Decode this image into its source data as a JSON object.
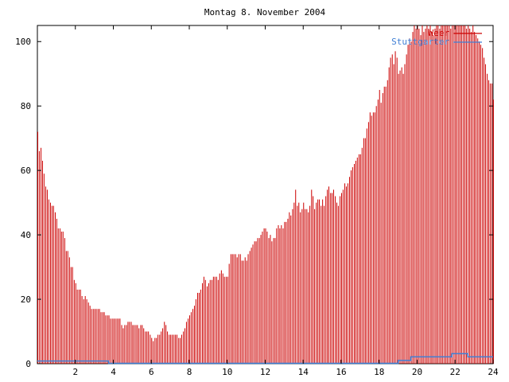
{
  "chart_data": {
    "type": "bar",
    "title": "Montag 8. November 2004",
    "xlabel": "",
    "ylabel": "",
    "xlim": [
      0,
      24
    ],
    "ylim": [
      0,
      105
    ],
    "x_ticks": [
      2,
      4,
      6,
      8,
      10,
      12,
      14,
      16,
      18,
      20,
      22,
      24
    ],
    "x_tick_labels": [
      "2",
      "4",
      "6",
      "8",
      "10",
      "12",
      "14",
      "16",
      "18",
      "20",
      "22",
      "24"
    ],
    "y_ticks": [
      0,
      20,
      40,
      60,
      80,
      100
    ],
    "y_tick_labels": [
      "0",
      "20",
      "40",
      "60",
      "80",
      "100"
    ],
    "grid": false,
    "legend_position": "top-right",
    "series": [
      {
        "name": "Weer",
        "color": "#cc0000",
        "style": "impulses",
        "points": [
          [
            0.0,
            72
          ],
          [
            0.08,
            66
          ],
          [
            0.17,
            67
          ],
          [
            0.25,
            63
          ],
          [
            0.33,
            59
          ],
          [
            0.42,
            55
          ],
          [
            0.5,
            54
          ],
          [
            0.58,
            51
          ],
          [
            0.67,
            50
          ],
          [
            0.75,
            49
          ],
          [
            0.83,
            49
          ],
          [
            0.92,
            47
          ],
          [
            1.0,
            45
          ],
          [
            1.08,
            42
          ],
          [
            1.17,
            42
          ],
          [
            1.25,
            41
          ],
          [
            1.33,
            41
          ],
          [
            1.42,
            39
          ],
          [
            1.5,
            35
          ],
          [
            1.58,
            35
          ],
          [
            1.67,
            33
          ],
          [
            1.75,
            30
          ],
          [
            1.83,
            30
          ],
          [
            1.92,
            26
          ],
          [
            2.0,
            25
          ],
          [
            2.08,
            23
          ],
          [
            2.17,
            23
          ],
          [
            2.25,
            23
          ],
          [
            2.33,
            21
          ],
          [
            2.42,
            20
          ],
          [
            2.5,
            21
          ],
          [
            2.58,
            20
          ],
          [
            2.67,
            19
          ],
          [
            2.75,
            18
          ],
          [
            2.83,
            17
          ],
          [
            2.92,
            17
          ],
          [
            3.0,
            17
          ],
          [
            3.08,
            17
          ],
          [
            3.17,
            17
          ],
          [
            3.25,
            17
          ],
          [
            3.33,
            16
          ],
          [
            3.42,
            16
          ],
          [
            3.5,
            16
          ],
          [
            3.58,
            15
          ],
          [
            3.67,
            15
          ],
          [
            3.75,
            15
          ],
          [
            3.83,
            14
          ],
          [
            3.92,
            14
          ],
          [
            4.0,
            14
          ],
          [
            4.08,
            14
          ],
          [
            4.17,
            14
          ],
          [
            4.25,
            14
          ],
          [
            4.33,
            14
          ],
          [
            4.42,
            12
          ],
          [
            4.5,
            11
          ],
          [
            4.58,
            12
          ],
          [
            4.67,
            12
          ],
          [
            4.75,
            13
          ],
          [
            4.83,
            13
          ],
          [
            4.92,
            13
          ],
          [
            5.0,
            12
          ],
          [
            5.08,
            12
          ],
          [
            5.17,
            12
          ],
          [
            5.25,
            12
          ],
          [
            5.33,
            11
          ],
          [
            5.42,
            12
          ],
          [
            5.5,
            12
          ],
          [
            5.58,
            11
          ],
          [
            5.67,
            10
          ],
          [
            5.75,
            10
          ],
          [
            5.83,
            10
          ],
          [
            5.92,
            9
          ],
          [
            6.0,
            8
          ],
          [
            6.08,
            7
          ],
          [
            6.17,
            8
          ],
          [
            6.25,
            8
          ],
          [
            6.33,
            9
          ],
          [
            6.42,
            9
          ],
          [
            6.5,
            10
          ],
          [
            6.58,
            11
          ],
          [
            6.67,
            13
          ],
          [
            6.75,
            12
          ],
          [
            6.83,
            10
          ],
          [
            6.92,
            9
          ],
          [
            7.0,
            9
          ],
          [
            7.08,
            9
          ],
          [
            7.17,
            9
          ],
          [
            7.25,
            9
          ],
          [
            7.33,
            9
          ],
          [
            7.42,
            8
          ],
          [
            7.5,
            8
          ],
          [
            7.58,
            9
          ],
          [
            7.67,
            10
          ],
          [
            7.75,
            11
          ],
          [
            7.83,
            13
          ],
          [
            7.92,
            14
          ],
          [
            8.0,
            15
          ],
          [
            8.08,
            16
          ],
          [
            8.17,
            17
          ],
          [
            8.25,
            18
          ],
          [
            8.33,
            20
          ],
          [
            8.42,
            22
          ],
          [
            8.5,
            22
          ],
          [
            8.58,
            23
          ],
          [
            8.67,
            25
          ],
          [
            8.75,
            27
          ],
          [
            8.83,
            26
          ],
          [
            8.92,
            24
          ],
          [
            9.0,
            25
          ],
          [
            9.08,
            26
          ],
          [
            9.17,
            26
          ],
          [
            9.25,
            27
          ],
          [
            9.33,
            27
          ],
          [
            9.42,
            27
          ],
          [
            9.5,
            26
          ],
          [
            9.58,
            28
          ],
          [
            9.67,
            29
          ],
          [
            9.75,
            28
          ],
          [
            9.83,
            27
          ],
          [
            9.92,
            27
          ],
          [
            10.0,
            27
          ],
          [
            10.08,
            31
          ],
          [
            10.17,
            34
          ],
          [
            10.25,
            34
          ],
          [
            10.33,
            34
          ],
          [
            10.42,
            34
          ],
          [
            10.5,
            33
          ],
          [
            10.58,
            34
          ],
          [
            10.67,
            34
          ],
          [
            10.75,
            32
          ],
          [
            10.83,
            32
          ],
          [
            10.92,
            33
          ],
          [
            11.0,
            32
          ],
          [
            11.08,
            34
          ],
          [
            11.17,
            35
          ],
          [
            11.25,
            36
          ],
          [
            11.33,
            37
          ],
          [
            11.42,
            38
          ],
          [
            11.5,
            38
          ],
          [
            11.58,
            39
          ],
          [
            11.67,
            39
          ],
          [
            11.75,
            40
          ],
          [
            11.83,
            41
          ],
          [
            11.92,
            42
          ],
          [
            12.0,
            42
          ],
          [
            12.08,
            41
          ],
          [
            12.17,
            39
          ],
          [
            12.25,
            40
          ],
          [
            12.33,
            38
          ],
          [
            12.42,
            39
          ],
          [
            12.5,
            39
          ],
          [
            12.58,
            42
          ],
          [
            12.67,
            43
          ],
          [
            12.75,
            42
          ],
          [
            12.83,
            43
          ],
          [
            12.92,
            42
          ],
          [
            13.0,
            44
          ],
          [
            13.08,
            44
          ],
          [
            13.17,
            45
          ],
          [
            13.25,
            47
          ],
          [
            13.33,
            46
          ],
          [
            13.42,
            48
          ],
          [
            13.5,
            50
          ],
          [
            13.58,
            54
          ],
          [
            13.67,
            49
          ],
          [
            13.75,
            50
          ],
          [
            13.83,
            47
          ],
          [
            13.92,
            48
          ],
          [
            14.0,
            50
          ],
          [
            14.08,
            48
          ],
          [
            14.17,
            48
          ],
          [
            14.25,
            47
          ],
          [
            14.33,
            49
          ],
          [
            14.42,
            54
          ],
          [
            14.5,
            52
          ],
          [
            14.58,
            48
          ],
          [
            14.67,
            50
          ],
          [
            14.75,
            51
          ],
          [
            14.83,
            51
          ],
          [
            14.92,
            49
          ],
          [
            15.0,
            51
          ],
          [
            15.08,
            49
          ],
          [
            15.17,
            52
          ],
          [
            15.25,
            54
          ],
          [
            15.33,
            55
          ],
          [
            15.42,
            53
          ],
          [
            15.5,
            53
          ],
          [
            15.58,
            54
          ],
          [
            15.67,
            52
          ],
          [
            15.75,
            50
          ],
          [
            15.83,
            49
          ],
          [
            15.92,
            52
          ],
          [
            16.0,
            53
          ],
          [
            16.08,
            54
          ],
          [
            16.17,
            56
          ],
          [
            16.25,
            55
          ],
          [
            16.33,
            56
          ],
          [
            16.42,
            58
          ],
          [
            16.5,
            60
          ],
          [
            16.58,
            61
          ],
          [
            16.67,
            62
          ],
          [
            16.75,
            63
          ],
          [
            16.83,
            64
          ],
          [
            16.92,
            65
          ],
          [
            17.0,
            65
          ],
          [
            17.08,
            67
          ],
          [
            17.17,
            70
          ],
          [
            17.25,
            70
          ],
          [
            17.33,
            73
          ],
          [
            17.42,
            75
          ],
          [
            17.5,
            78
          ],
          [
            17.58,
            77
          ],
          [
            17.67,
            78
          ],
          [
            17.75,
            78
          ],
          [
            17.83,
            80
          ],
          [
            17.92,
            82
          ],
          [
            18.0,
            85
          ],
          [
            18.08,
            81
          ],
          [
            18.17,
            84
          ],
          [
            18.25,
            86
          ],
          [
            18.33,
            86
          ],
          [
            18.42,
            88
          ],
          [
            18.5,
            92
          ],
          [
            18.58,
            95
          ],
          [
            18.67,
            96
          ],
          [
            18.75,
            93
          ],
          [
            18.83,
            97
          ],
          [
            18.92,
            95
          ],
          [
            19.0,
            90
          ],
          [
            19.08,
            91
          ],
          [
            19.17,
            92
          ],
          [
            19.25,
            90
          ],
          [
            19.33,
            93
          ],
          [
            19.42,
            96
          ],
          [
            19.5,
            99
          ],
          [
            19.58,
            101
          ],
          [
            19.67,
            100
          ],
          [
            19.75,
            103
          ],
          [
            19.83,
            105
          ],
          [
            19.92,
            104
          ],
          [
            20.0,
            105
          ],
          [
            20.08,
            104
          ],
          [
            20.17,
            102
          ],
          [
            20.25,
            105
          ],
          [
            20.33,
            103
          ],
          [
            20.42,
            104
          ],
          [
            20.5,
            105
          ],
          [
            20.58,
            104
          ],
          [
            20.67,
            105
          ],
          [
            20.75,
            103
          ],
          [
            20.83,
            102
          ],
          [
            20.92,
            104
          ],
          [
            21.0,
            105
          ],
          [
            21.08,
            105
          ],
          [
            21.17,
            104
          ],
          [
            21.25,
            105
          ],
          [
            21.33,
            105
          ],
          [
            21.42,
            105
          ],
          [
            21.5,
            105
          ],
          [
            21.58,
            105
          ],
          [
            21.67,
            105
          ],
          [
            21.75,
            104
          ],
          [
            21.83,
            105
          ],
          [
            21.92,
            105
          ],
          [
            22.0,
            105
          ],
          [
            22.08,
            105
          ],
          [
            22.17,
            105
          ],
          [
            22.25,
            105
          ],
          [
            22.33,
            105
          ],
          [
            22.42,
            105
          ],
          [
            22.5,
            105
          ],
          [
            22.58,
            104
          ],
          [
            22.67,
            105
          ],
          [
            22.75,
            104
          ],
          [
            22.83,
            103
          ],
          [
            22.92,
            105
          ],
          [
            23.0,
            103
          ],
          [
            23.08,
            102
          ],
          [
            23.17,
            101
          ],
          [
            23.25,
            100
          ],
          [
            23.33,
            99
          ],
          [
            23.42,
            98
          ],
          [
            23.5,
            95
          ],
          [
            23.58,
            93
          ],
          [
            23.67,
            90
          ],
          [
            23.75,
            88
          ],
          [
            23.83,
            87
          ],
          [
            23.92,
            87
          ],
          [
            24.0,
            82
          ]
        ]
      },
      {
        "name": "Stuttgarter",
        "color": "#3f7fd5",
        "style": "steps",
        "points": [
          [
            0.0,
            0.7
          ],
          [
            3.75,
            0.7
          ],
          [
            3.75,
            0
          ],
          [
            19.0,
            0
          ],
          [
            19.0,
            0.9
          ],
          [
            19.67,
            0.9
          ],
          [
            19.67,
            2
          ],
          [
            21.83,
            2
          ],
          [
            21.83,
            3
          ],
          [
            22.67,
            3
          ],
          [
            22.67,
            2
          ],
          [
            24.0,
            2
          ]
        ]
      }
    ]
  }
}
